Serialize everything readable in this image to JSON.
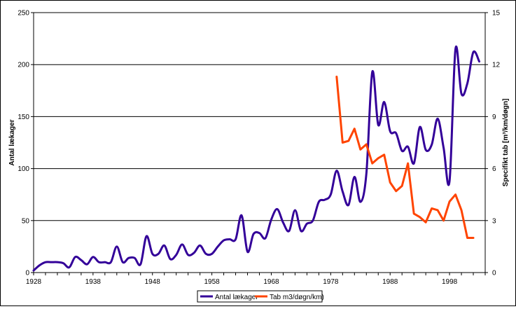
{
  "chart_data": {
    "type": "line",
    "x": [
      1928,
      1929,
      1930,
      1931,
      1932,
      1933,
      1934,
      1935,
      1936,
      1937,
      1938,
      1939,
      1940,
      1941,
      1942,
      1943,
      1944,
      1945,
      1946,
      1947,
      1948,
      1949,
      1950,
      1951,
      1952,
      1953,
      1954,
      1955,
      1956,
      1957,
      1958,
      1959,
      1960,
      1961,
      1962,
      1963,
      1964,
      1965,
      1966,
      1967,
      1968,
      1969,
      1970,
      1971,
      1972,
      1973,
      1974,
      1975,
      1976,
      1977,
      1978,
      1979,
      1980,
      1981,
      1982,
      1983,
      1984,
      1985,
      1986,
      1987,
      1988,
      1989,
      1990,
      1991,
      1992,
      1993,
      1994,
      1995,
      1996,
      1997,
      1998,
      1999,
      2000,
      2001,
      2002,
      2003
    ],
    "series": [
      {
        "name": "Antal lækager",
        "axis": "left",
        "color": "#330099",
        "values": [
          2,
          7,
          10,
          10,
          10,
          9,
          5,
          15,
          12,
          8,
          15,
          10,
          10,
          10,
          25,
          10,
          14,
          14,
          8,
          35,
          18,
          18,
          26,
          13,
          17,
          27,
          17,
          19,
          26,
          18,
          18,
          25,
          31,
          32,
          32,
          55,
          20,
          37,
          38,
          33,
          51,
          61,
          48,
          40,
          60,
          40,
          47,
          50,
          68,
          70,
          75,
          98,
          78,
          65,
          92,
          68,
          95,
          193,
          142,
          164,
          136,
          134,
          117,
          121,
          105,
          140,
          118,
          123,
          148,
          120,
          88,
          215,
          172,
          182,
          212,
          203
        ]
      },
      {
        "name": "Tab m3/døgn/km)",
        "axis": "right",
        "color": "#ff4400",
        "x": [
          1979,
          1980,
          1981,
          1982,
          1983,
          1984,
          1985,
          1986,
          1987,
          1988,
          1989,
          1990,
          1991,
          1992,
          1993,
          1994,
          1995,
          1996,
          1997,
          1998,
          1999,
          2000,
          2001,
          2002
        ],
        "values": [
          11.3,
          7.5,
          7.6,
          8.3,
          7.1,
          7.4,
          6.3,
          6.6,
          6.8,
          5.2,
          4.7,
          5.0,
          6.3,
          3.4,
          3.2,
          2.9,
          3.7,
          3.6,
          3.0,
          4.1,
          4.5,
          3.6,
          2.0,
          2.0
        ]
      }
    ],
    "xlim": [
      1928,
      2004
    ],
    "xticks": [
      "1928",
      "1938",
      "1948",
      "1958",
      "1968",
      "1978",
      "1988",
      "1998"
    ],
    "ylim": [
      0,
      250
    ],
    "yticks": [
      "0",
      "50",
      "100",
      "150",
      "200",
      "250"
    ],
    "y2lim": [
      0,
      15
    ],
    "y2ticks": [
      "0",
      "3",
      "6",
      "9",
      "12",
      "15"
    ],
    "ylabel": "Antal lækager",
    "y2label": "Specifikt tab [m³/km/døgn]",
    "xlabel": "",
    "title": "",
    "grid": "horizontal",
    "legend": "bottom"
  }
}
